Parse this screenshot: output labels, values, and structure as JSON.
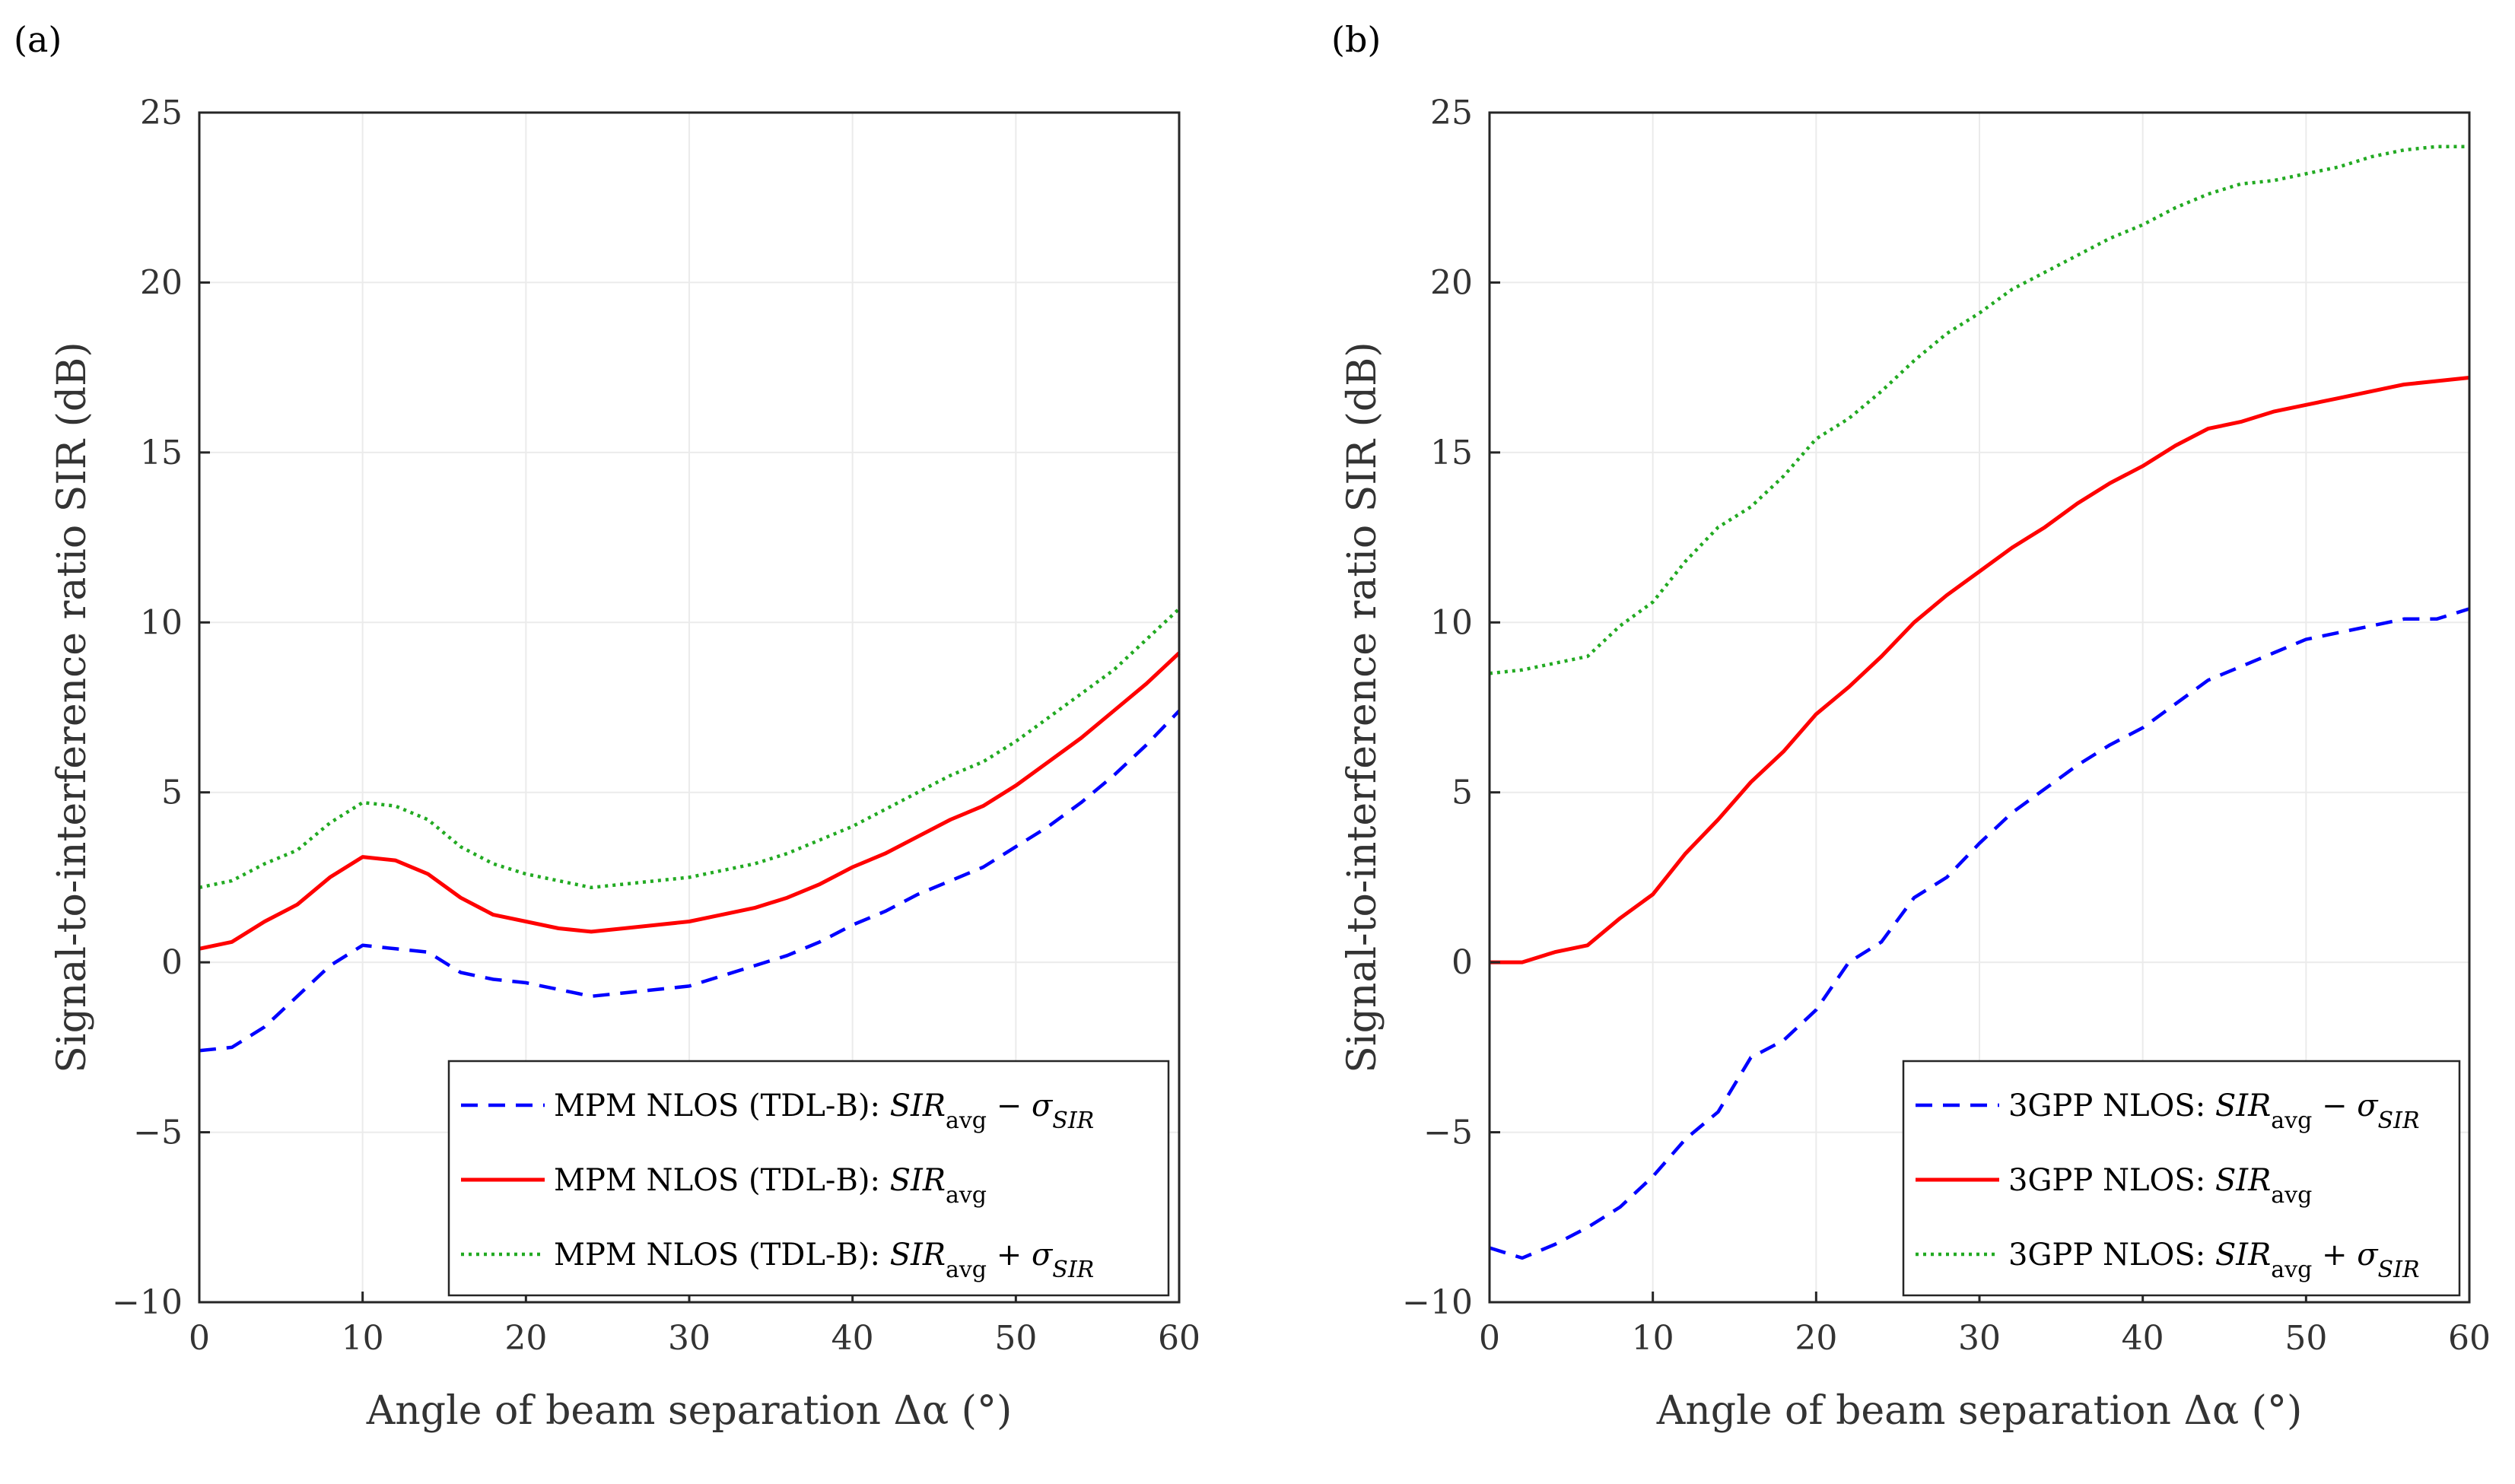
{
  "chart_data": [
    {
      "type": "line",
      "panel_label": "(a)",
      "xlabel": "Angle of beam separation  Δα  (°)",
      "ylabel": "Signal-to-interference ratio  SIR  (dB)",
      "xlim": [
        0,
        60
      ],
      "ylim": [
        -10,
        25
      ],
      "xticks": [
        "0",
        "10",
        "20",
        "30",
        "40",
        "50",
        "60"
      ],
      "yticks": [
        "−10",
        "−5",
        "0",
        "5",
        "10",
        "15",
        "20",
        "25"
      ],
      "grid": true,
      "legend_position": "bottom-right",
      "x": [
        0,
        2,
        4,
        6,
        8,
        10,
        12,
        14,
        16,
        18,
        20,
        22,
        24,
        26,
        28,
        30,
        32,
        34,
        36,
        38,
        40,
        42,
        44,
        46,
        48,
        50,
        52,
        54,
        56,
        58,
        60
      ],
      "series": [
        {
          "name": "MPM NLOS (TDL-B): SIR_avg − σ_SIR",
          "legend_prefix": "MPM NLOS (TDL-B): ",
          "legend_op": "−",
          "color": "#0000ff",
          "style": "dashed",
          "values": [
            -2.6,
            -2.5,
            -1.9,
            -1.0,
            -0.1,
            0.5,
            0.4,
            0.3,
            -0.3,
            -0.5,
            -0.6,
            -0.8,
            -1.0,
            -0.9,
            -0.8,
            -0.7,
            -0.4,
            -0.1,
            0.2,
            0.6,
            1.1,
            1.5,
            2.0,
            2.4,
            2.8,
            3.4,
            4.0,
            4.7,
            5.5,
            6.4,
            7.4
          ]
        },
        {
          "name": "MPM NLOS (TDL-B): SIR_avg",
          "legend_prefix": "MPM NLOS (TDL-B): ",
          "legend_op": "",
          "color": "#ff0000",
          "style": "solid",
          "values": [
            0.4,
            0.6,
            1.2,
            1.7,
            2.5,
            3.1,
            3.0,
            2.6,
            1.9,
            1.4,
            1.2,
            1.0,
            0.9,
            1.0,
            1.1,
            1.2,
            1.4,
            1.6,
            1.9,
            2.3,
            2.8,
            3.2,
            3.7,
            4.2,
            4.6,
            5.2,
            5.9,
            6.6,
            7.4,
            8.2,
            9.1
          ]
        },
        {
          "name": "MPM NLOS (TDL-B): SIR_avg + σ_SIR",
          "legend_prefix": "MPM NLOS (TDL-B): ",
          "legend_op": "+",
          "color": "#22aa22",
          "style": "dotted",
          "values": [
            2.2,
            2.4,
            2.9,
            3.3,
            4.1,
            4.7,
            4.6,
            4.2,
            3.4,
            2.9,
            2.6,
            2.4,
            2.2,
            2.3,
            2.4,
            2.5,
            2.7,
            2.9,
            3.2,
            3.6,
            4.0,
            4.5,
            5.0,
            5.5,
            5.9,
            6.5,
            7.2,
            7.9,
            8.6,
            9.5,
            10.4
          ]
        }
      ]
    },
    {
      "type": "line",
      "panel_label": "(b)",
      "xlabel": "Angle of beam separation  Δα  (°)",
      "ylabel": "Signal-to-interference ratio  SIR  (dB)",
      "xlim": [
        0,
        60
      ],
      "ylim": [
        -10,
        25
      ],
      "xticks": [
        "0",
        "10",
        "20",
        "30",
        "40",
        "50",
        "60"
      ],
      "yticks": [
        "−10",
        "−5",
        "0",
        "5",
        "10",
        "15",
        "20",
        "25"
      ],
      "grid": true,
      "legend_position": "bottom-right",
      "x": [
        0,
        2,
        4,
        6,
        8,
        10,
        12,
        14,
        16,
        18,
        20,
        22,
        24,
        26,
        28,
        30,
        32,
        34,
        36,
        38,
        40,
        42,
        44,
        46,
        48,
        50,
        52,
        54,
        56,
        58,
        60
      ],
      "series": [
        {
          "name": "3GPP NLOS: SIR_avg − σ_SIR",
          "legend_prefix": "3GPP NLOS: ",
          "legend_op": "−",
          "color": "#0000ff",
          "style": "dashed",
          "values": [
            -8.4,
            -8.7,
            -8.3,
            -7.8,
            -7.2,
            -6.3,
            -5.2,
            -4.4,
            -2.8,
            -2.3,
            -1.4,
            0.0,
            0.6,
            1.9,
            2.5,
            3.5,
            4.4,
            5.1,
            5.8,
            6.4,
            6.9,
            7.6,
            8.3,
            8.7,
            9.1,
            9.5,
            9.7,
            9.9,
            10.1,
            10.1,
            10.4
          ]
        },
        {
          "name": "3GPP NLOS: SIR_avg",
          "legend_prefix": "3GPP NLOS: ",
          "legend_op": "",
          "color": "#ff0000",
          "style": "solid",
          "values": [
            0.0,
            0.0,
            0.3,
            0.5,
            1.3,
            2.0,
            3.2,
            4.2,
            5.3,
            6.2,
            7.3,
            8.1,
            9.0,
            10.0,
            10.8,
            11.5,
            12.2,
            12.8,
            13.5,
            14.1,
            14.6,
            15.2,
            15.7,
            15.9,
            16.2,
            16.4,
            16.6,
            16.8,
            17.0,
            17.1,
            17.2
          ]
        },
        {
          "name": "3GPP NLOS: SIR_avg + σ_SIR",
          "legend_prefix": "3GPP NLOS: ",
          "legend_op": "+",
          "color": "#22aa22",
          "style": "dotted",
          "values": [
            8.5,
            8.6,
            8.8,
            9.0,
            9.9,
            10.6,
            11.8,
            12.8,
            13.4,
            14.3,
            15.4,
            16.0,
            16.8,
            17.7,
            18.5,
            19.1,
            19.8,
            20.3,
            20.8,
            21.3,
            21.7,
            22.2,
            22.6,
            22.9,
            23.0,
            23.2,
            23.4,
            23.7,
            23.9,
            24.0,
            24.0
          ]
        }
      ]
    }
  ]
}
